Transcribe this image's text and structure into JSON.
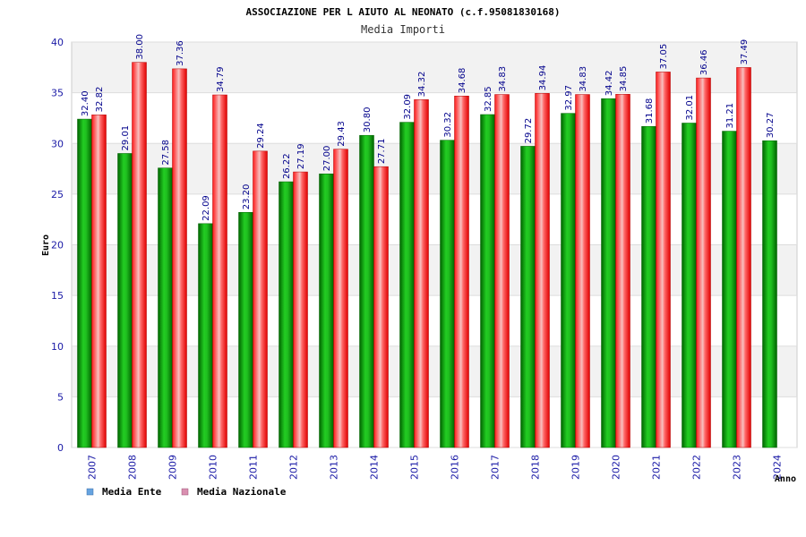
{
  "chart_data": {
    "type": "bar",
    "title": "ASSOCIAZIONE PER L AIUTO AL NEONATO (c.f.95081830168)",
    "subtitle": "Media Importi",
    "xlabel": "Anno",
    "ylabel": "Euro",
    "ylim": [
      0,
      40
    ],
    "yticks": [
      "0",
      "5",
      "10",
      "15",
      "20",
      "25",
      "30",
      "35",
      "40"
    ],
    "grid": true,
    "legend_position": "bottom-left",
    "categories": [
      "2007",
      "2008",
      "2009",
      "2010",
      "2011",
      "2012",
      "2013",
      "2014",
      "2015",
      "2016",
      "2017",
      "2018",
      "2019",
      "2020",
      "2021",
      "2022",
      "2023",
      "2024"
    ],
    "series": [
      {
        "name": "Media Ente",
        "color": "#00a000",
        "legend_color": "#66a3e0",
        "values": [
          32.4,
          29.01,
          27.58,
          22.09,
          23.2,
          26.22,
          27.0,
          30.8,
          32.09,
          30.32,
          32.85,
          29.72,
          32.97,
          34.42,
          31.68,
          32.01,
          31.21,
          30.27
        ],
        "labels": [
          "32.40",
          "29.01",
          "27.58",
          "22.09",
          "23.20",
          "26.22",
          "27.00",
          "30.80",
          "32.09",
          "30.32",
          "32.85",
          "29.72",
          "32.97",
          "34.42",
          "31.68",
          "32.01",
          "31.21",
          "30.27"
        ]
      },
      {
        "name": "Media Nazionale",
        "color": "#e00000",
        "legend_color": "#d98fb0",
        "values": [
          32.82,
          38.0,
          37.36,
          34.79,
          29.24,
          27.19,
          29.43,
          27.71,
          34.32,
          34.68,
          34.83,
          34.94,
          34.83,
          34.85,
          37.05,
          36.46,
          37.49,
          null
        ],
        "labels": [
          "32.82",
          "38.00",
          "37.36",
          "34.79",
          "29.24",
          "27.19",
          "29.43",
          "27.71",
          "34.32",
          "34.68",
          "34.83",
          "34.94",
          "34.83",
          "34.85",
          "37.05",
          "36.46",
          "37.49",
          ""
        ]
      }
    ]
  }
}
